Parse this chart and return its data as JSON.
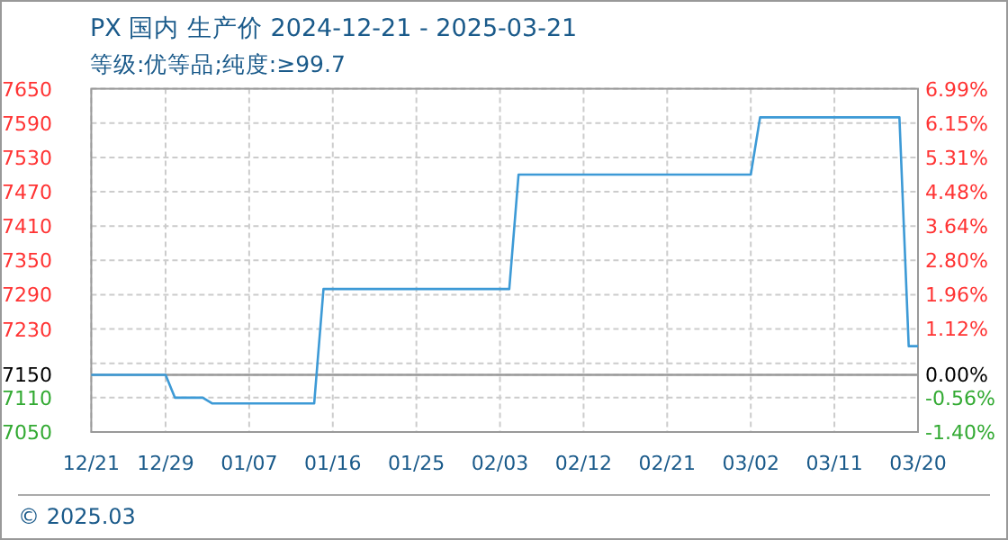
{
  "chart_data": {
    "type": "line",
    "title": "PX 国内 生产价 2024-12-21 - 2025-03-21",
    "subtitle": "等级:优等品;纯度:≥99.7",
    "x": [
      "2024-12-21",
      "2024-12-29",
      "2024-12-30",
      "2025-01-02",
      "2025-01-03",
      "2025-01-14",
      "2025-01-15",
      "2025-02-04",
      "2025-02-05",
      "2025-03-02",
      "2025-03-03",
      "2025-03-18",
      "2025-03-19",
      "2025-03-20"
    ],
    "series": [
      {
        "color": "#3d9ad6",
        "values": [
          7150,
          7150,
          7110,
          7110,
          7100,
          7100,
          7300,
          7300,
          7500,
          7500,
          7600,
          7600,
          7200,
          7200
        ]
      }
    ],
    "xlim": [
      "2024-12-21",
      "2025-03-20"
    ],
    "xticks": [
      {
        "value": "2024-12-21",
        "label": "12/21"
      },
      {
        "value": "2024-12-29",
        "label": "12/29"
      },
      {
        "value": "2025-01-07",
        "label": "01/07"
      },
      {
        "value": "2025-01-16",
        "label": "01/16"
      },
      {
        "value": "2025-01-25",
        "label": "01/25"
      },
      {
        "value": "2025-02-03",
        "label": "02/03"
      },
      {
        "value": "2025-02-12",
        "label": "02/12"
      },
      {
        "value": "2025-02-21",
        "label": "02/21"
      },
      {
        "value": "2025-03-02",
        "label": "03/02"
      },
      {
        "value": "2025-03-11",
        "label": "03/11"
      },
      {
        "value": "2025-03-20",
        "label": "03/20"
      }
    ],
    "ylim": [
      7050,
      7650
    ],
    "yticks": [
      7050,
      7110,
      7150,
      {
        "value": 7170,
        "label": null
      },
      7230,
      7290,
      7350,
      7410,
      7470,
      7530,
      7590,
      7650
    ],
    "y2lim": [
      -1.4,
      6.99
    ],
    "y2ticks": [
      {
        "value": -1.4,
        "label": "-1.40%"
      },
      {
        "value": -0.56,
        "label": "-0.56%"
      },
      {
        "value": 0,
        "label": "0.00%"
      },
      {
        "value": 1.12,
        "label": "1.12%"
      },
      {
        "value": 1.96,
        "label": "1.96%"
      },
      {
        "value": 2.8,
        "label": "2.80%"
      },
      {
        "value": 3.64,
        "label": "3.64%"
      },
      {
        "value": 4.48,
        "label": "4.48%"
      },
      {
        "value": 5.31,
        "label": "5.31%"
      },
      {
        "value": 6.15,
        "label": "6.15%"
      },
      {
        "value": 6.99,
        "label": "6.99%"
      }
    ],
    "ref_lines": [
      {
        "axis": "y",
        "value": 7150,
        "color": "#999999"
      }
    ],
    "grid": true,
    "annotations": [
      "© 2025.03"
    ]
  }
}
